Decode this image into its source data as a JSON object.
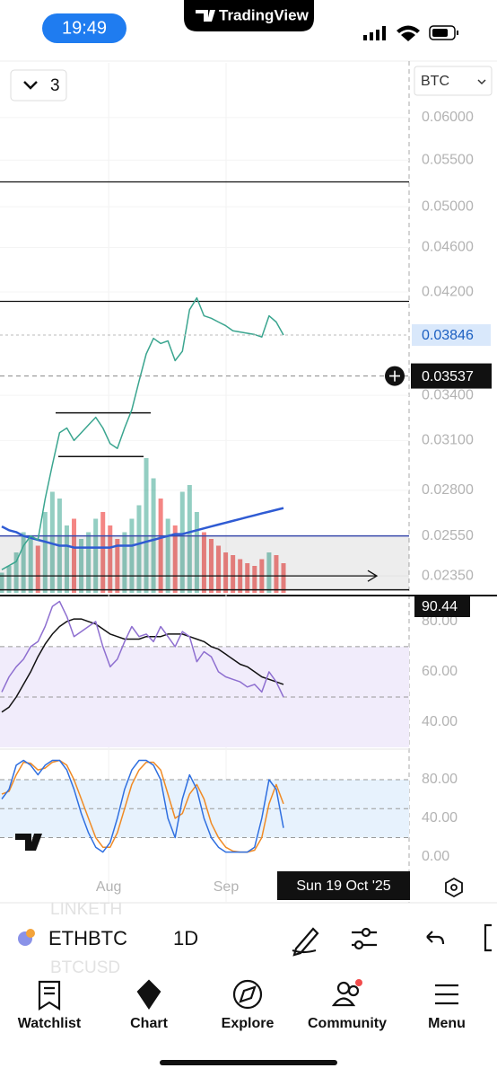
{
  "status_bar": {
    "time": "19:49",
    "app": "TradingView"
  },
  "chart_toolbar": {
    "layout_count": "3",
    "currency": "BTC"
  },
  "chart_data": [
    {
      "type": "line",
      "log_scale": true,
      "grid": true,
      "ylim": [
        0.0227,
        0.0671
      ],
      "yticks": [
        {
          "value": 0.06,
          "label": "0.06000"
        },
        {
          "value": 0.055,
          "label": "0.05500"
        },
        {
          "value": 0.05,
          "label": "0.05000"
        },
        {
          "value": 0.046,
          "label": "0.04600"
        },
        {
          "value": 0.042,
          "label": "0.04200"
        },
        {
          "value": 0.034,
          "label": "0.03400"
        },
        {
          "value": 0.031,
          "label": "0.03100"
        },
        {
          "value": 0.028,
          "label": "0.02800"
        },
        {
          "value": 0.0255,
          "label": "0.02550"
        },
        {
          "value": 0.0235,
          "label": "0.02350"
        }
      ],
      "series": [
        {
          "color": "#3aa58f",
          "values": [
            0.0238,
            0.024,
            0.0242,
            0.025,
            0.0255,
            0.0253,
            0.0275,
            0.0295,
            0.0315,
            0.0318,
            0.031,
            0.0315,
            0.032,
            0.0325,
            0.0318,
            0.0308,
            0.0305,
            0.0318,
            0.033,
            0.035,
            0.037,
            0.0382,
            0.0378,
            0.038,
            0.0365,
            0.0372,
            0.0405,
            0.0415,
            0.04,
            0.0398,
            0.0395,
            0.0392,
            0.0388,
            0.0387,
            0.0386,
            0.0385,
            0.0383,
            0.04,
            0.0395,
            0.03846
          ]
        },
        {
          "color": "#2f5bd3",
          "values": [
            0.026,
            0.0258,
            0.0257,
            0.0255,
            0.0254,
            0.0253,
            0.0252,
            0.0251,
            0.025,
            0.025,
            0.0249,
            0.0249,
            0.0249,
            0.0249,
            0.0249,
            0.0249,
            0.025,
            0.025,
            0.025,
            0.0251,
            0.0252,
            0.0253,
            0.0254,
            0.0255,
            0.0256,
            0.0256,
            0.0257,
            0.0258,
            0.0259,
            0.026,
            0.0261,
            0.0262,
            0.0263,
            0.0264,
            0.0265,
            0.0266,
            0.0267,
            0.0268,
            0.0269,
            0.027
          ]
        }
      ],
      "volume": [
        15,
        20,
        30,
        45,
        40,
        35,
        60,
        75,
        70,
        50,
        55,
        40,
        45,
        55,
        60,
        50,
        40,
        45,
        55,
        65,
        100,
        85,
        70,
        55,
        50,
        75,
        80,
        60,
        45,
        40,
        35,
        30,
        28,
        25,
        22,
        20,
        25,
        30,
        28,
        22
      ],
      "hlines": [
        0.0526,
        0.0412
      ],
      "segments": [
        0.0328,
        0.03
      ],
      "zone": [
        0.0255,
        0.02284
      ],
      "arrow": 0.0235,
      "last_price": {
        "value": 0.03846,
        "label": "0.03846"
      },
      "crosshair_price": {
        "value": 0.03537,
        "label": "0.03537"
      }
    },
    {
      "type": "line",
      "ylim": [
        30,
        89.6
      ],
      "yticks": [
        {
          "value": 80,
          "label": "80.00"
        },
        {
          "value": 60,
          "label": "60.00"
        },
        {
          "value": 40,
          "label": "40.00"
        }
      ],
      "band": [
        70,
        30
      ],
      "band_color": "#f1ecfb",
      "dashed": [
        70,
        50
      ],
      "badge": "90.44",
      "series": [
        {
          "color": "#8e6fd0",
          "values": [
            52,
            58,
            62,
            65,
            70,
            72,
            78,
            86,
            88,
            82,
            74,
            76,
            78,
            80,
            70,
            62,
            65,
            72,
            78,
            74,
            75,
            72,
            78,
            74,
            70,
            76,
            74,
            64,
            68,
            66,
            60,
            58,
            57,
            56,
            54,
            55,
            52,
            60,
            56,
            50
          ]
        },
        {
          "color": "#111111",
          "values": [
            44,
            46,
            50,
            55,
            60,
            66,
            71,
            75,
            78,
            80,
            81,
            81,
            80,
            79,
            77,
            75,
            74,
            73,
            73,
            73,
            74,
            74,
            74,
            75,
            75,
            75,
            74,
            73,
            72,
            70,
            69,
            67,
            65,
            63,
            62,
            60,
            58,
            57,
            56,
            55
          ]
        }
      ]
    },
    {
      "type": "line",
      "ylim": [
        -5.6,
        107.9
      ],
      "yticks": [
        {
          "value": 80,
          "label": "80.00"
        },
        {
          "value": 40,
          "label": "40.00"
        },
        {
          "value": 0,
          "label": "0.00"
        }
      ],
      "band": [
        80,
        20
      ],
      "band_color": "#e7f2fd",
      "dashed": [
        80,
        50,
        20
      ],
      "series": [
        {
          "color": "#2f6fe0",
          "values": [
            60,
            70,
            95,
            100,
            95,
            85,
            95,
            100,
            100,
            90,
            70,
            45,
            25,
            10,
            5,
            15,
            40,
            70,
            90,
            100,
            100,
            95,
            80,
            40,
            20,
            60,
            85,
            70,
            40,
            20,
            10,
            5,
            5,
            5,
            5,
            10,
            40,
            80,
            70,
            30
          ]
        },
        {
          "color": "#f08a24",
          "values": [
            65,
            68,
            85,
            98,
            97,
            90,
            92,
            98,
            100,
            95,
            80,
            60,
            40,
            20,
            10,
            10,
            25,
            50,
            75,
            90,
            98,
            98,
            90,
            65,
            40,
            45,
            65,
            75,
            60,
            35,
            20,
            10,
            6,
            5,
            5,
            7,
            20,
            55,
            75,
            55
          ]
        }
      ]
    }
  ],
  "x_axis": {
    "ticks": [
      {
        "value": 14.8,
        "label": "Aug"
      },
      {
        "value": 31.05,
        "label": "Sep"
      }
    ],
    "crosshair_label": "Sun 19 Oct '25"
  },
  "symbol_bar": {
    "symbol": "ETHBTC",
    "interval": "1D",
    "background_symbols": [
      "LINKETH",
      "BTCUSD"
    ]
  },
  "nav": {
    "items": [
      "Watchlist",
      "Chart",
      "Explore",
      "Community",
      "Menu"
    ]
  }
}
